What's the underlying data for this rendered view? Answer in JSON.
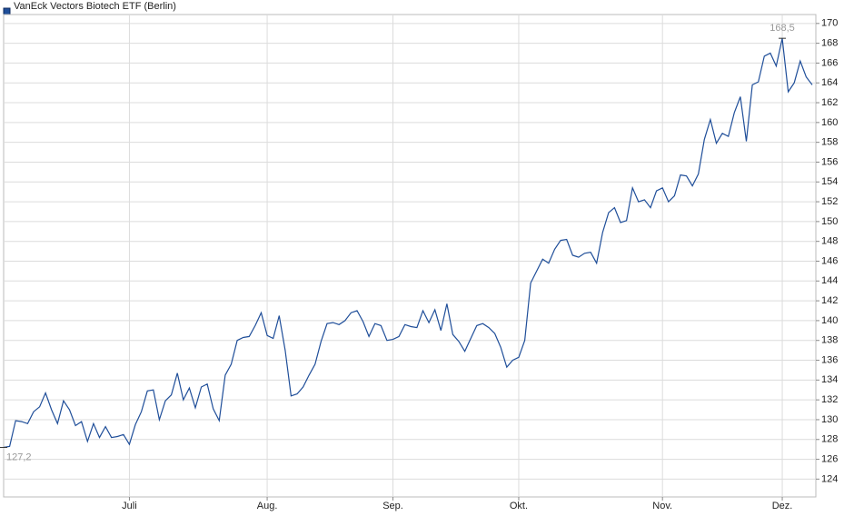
{
  "chart_data": {
    "type": "line",
    "series": [
      {
        "name": "VanEck Vectors Biotech ETF (Berlin)",
        "color": "#1f4e99",
        "values": [
          127.2,
          127.3,
          129.9,
          129.8,
          129.6,
          130.8,
          131.3,
          132.7,
          131.0,
          129.6,
          131.9,
          131.0,
          129.4,
          129.8,
          127.8,
          129.6,
          128.2,
          129.3,
          128.2,
          128.3,
          128.5,
          127.5,
          129.5,
          130.8,
          132.9,
          133.0,
          130.0,
          131.9,
          132.5,
          134.7,
          132.0,
          133.2,
          131.2,
          133.3,
          133.6,
          131.1,
          129.9,
          134.5,
          135.6,
          138.0,
          138.3,
          138.4,
          139.5,
          140.8,
          138.5,
          138.2,
          140.5,
          137.0,
          132.4,
          132.6,
          133.3,
          134.5,
          135.6,
          137.9,
          139.7,
          139.8,
          139.6,
          140.0,
          140.8,
          141.0,
          139.9,
          138.4,
          139.7,
          139.5,
          138.0,
          138.1,
          138.4,
          139.6,
          139.4,
          139.3,
          141.0,
          139.8,
          141.1,
          139.0,
          141.7,
          138.6,
          137.9,
          136.9,
          138.2,
          139.5,
          139.7,
          139.3,
          138.7,
          137.3,
          135.3,
          136.0,
          136.3,
          138.0,
          143.8,
          145.0,
          146.2,
          145.8,
          147.2,
          148.1,
          148.2,
          146.6,
          146.4,
          146.8,
          146.9,
          145.8,
          148.9,
          150.9,
          151.4,
          149.9,
          150.1,
          153.4,
          152.0,
          152.2,
          151.4,
          153.1,
          153.4,
          152.0,
          152.6,
          154.7,
          154.6,
          153.6,
          154.8,
          158.3,
          160.3,
          157.9,
          158.9,
          158.6,
          161.0,
          162.6,
          158.1,
          163.8,
          164.1,
          166.7,
          167.0,
          165.7,
          168.5,
          163.1,
          164.0,
          166.2,
          164.6,
          163.8
        ],
        "value_labels": [
          "127,2",
          null,
          null,
          null,
          null,
          null,
          null,
          null,
          null,
          null,
          null,
          null,
          null,
          null,
          null,
          null,
          null,
          null,
          null,
          null,
          null,
          null,
          null,
          null,
          null,
          null,
          null,
          null,
          null,
          null,
          null,
          null,
          null,
          null,
          null,
          null,
          null,
          null,
          null,
          null,
          null,
          null,
          null,
          null,
          null,
          null,
          null,
          null,
          null,
          null,
          null,
          null,
          null,
          null,
          null,
          null,
          null,
          null,
          null,
          null,
          null,
          null,
          null,
          null,
          null,
          null,
          null,
          null,
          null,
          null,
          null,
          null,
          null,
          null,
          null,
          null,
          null,
          null,
          null,
          null,
          null,
          null,
          null,
          null,
          null,
          null,
          null,
          null,
          null,
          null,
          null,
          null,
          null,
          null,
          null,
          null,
          null,
          null,
          null,
          null,
          null,
          null,
          null,
          null,
          null,
          null,
          null,
          null,
          null,
          null,
          null,
          null,
          null,
          null,
          null,
          null,
          null,
          null,
          null,
          null,
          null,
          null,
          null,
          null,
          null,
          null,
          null,
          null,
          null,
          null,
          "168,5",
          null,
          null,
          null,
          null,
          null
        ]
      }
    ],
    "categories": [
      null,
      null,
      null,
      null,
      null,
      null,
      null,
      null,
      null,
      null,
      null,
      null,
      null,
      null,
      null,
      null,
      null,
      null,
      null,
      null,
      null,
      "Juli",
      null,
      null,
      null,
      null,
      null,
      null,
      null,
      null,
      null,
      null,
      null,
      null,
      null,
      null,
      null,
      null,
      null,
      null,
      null,
      null,
      null,
      null,
      "Aug.",
      null,
      null,
      null,
      null,
      null,
      null,
      null,
      null,
      null,
      null,
      null,
      null,
      null,
      null,
      null,
      null,
      null,
      null,
      null,
      null,
      "Sep.",
      null,
      null,
      null,
      null,
      null,
      null,
      null,
      null,
      null,
      null,
      null,
      null,
      null,
      null,
      null,
      null,
      null,
      null,
      null,
      null,
      "Okt.",
      null,
      null,
      null,
      null,
      null,
      null,
      null,
      null,
      null,
      null,
      null,
      null,
      null,
      null,
      null,
      null,
      null,
      null,
      null,
      null,
      null,
      null,
      null,
      "Nov.",
      null,
      null,
      null,
      null,
      null,
      null,
      null,
      null,
      null,
      null,
      null,
      null,
      null,
      null,
      null,
      null,
      null,
      null,
      null,
      "Dez.",
      null,
      null,
      null,
      null,
      null
    ],
    "ylim": [
      122.2,
      170.9
    ],
    "yticks": [
      124,
      126,
      128,
      130,
      132,
      134,
      136,
      138,
      140,
      142,
      144,
      146,
      148,
      150,
      152,
      154,
      156,
      158,
      160,
      162,
      164,
      166,
      168,
      170
    ],
    "grid": true
  }
}
